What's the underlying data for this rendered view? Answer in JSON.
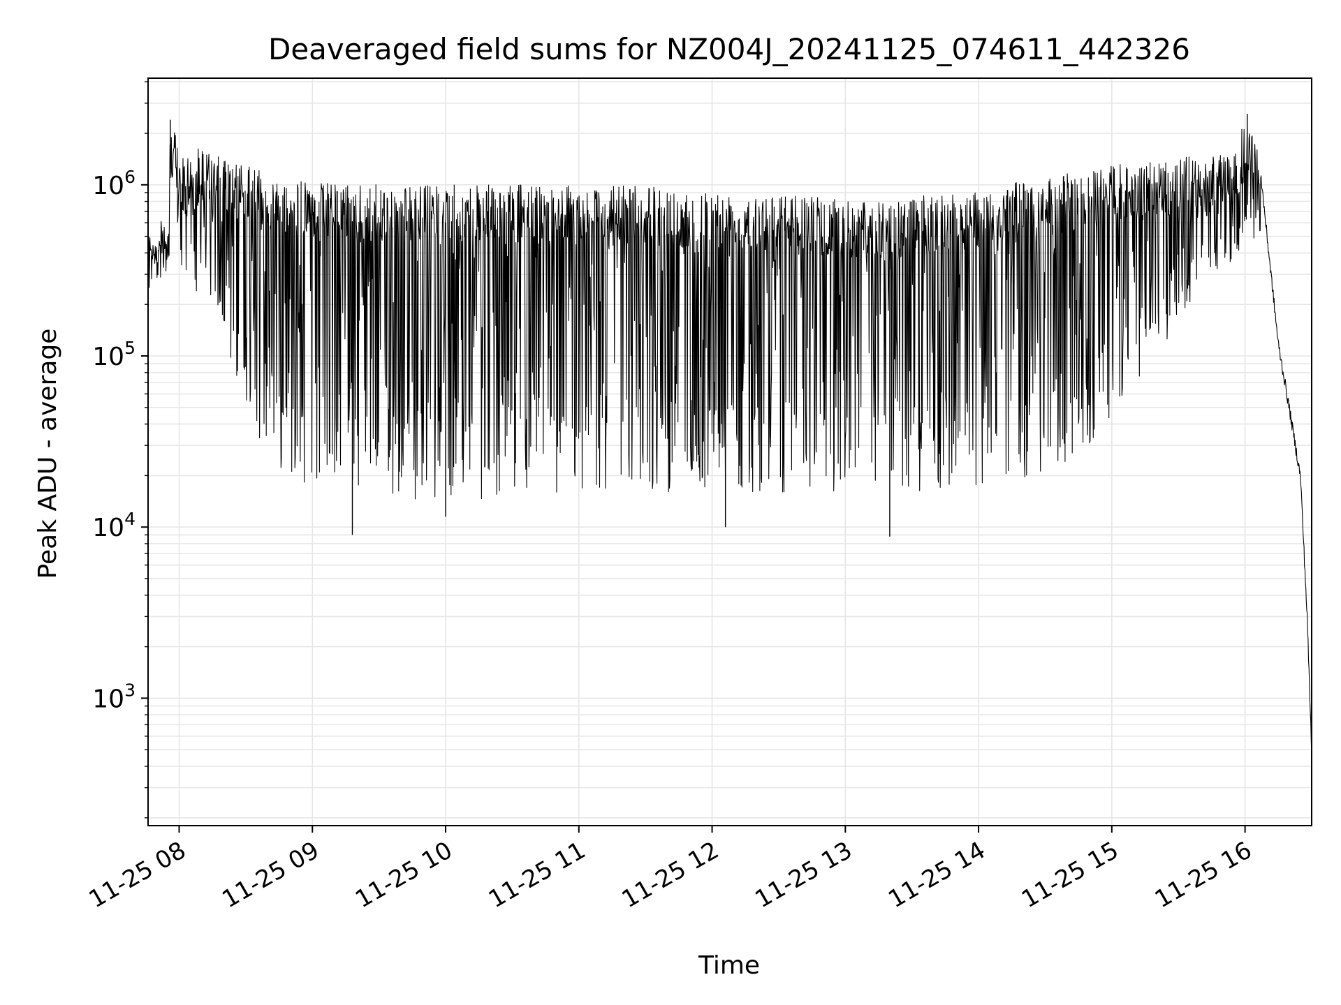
{
  "chart_data": {
    "type": "line",
    "title": "Deaveraged field sums for NZ004J_20241125_074611_442326",
    "xlabel": "Time",
    "ylabel": "Peak ADU - average",
    "yscale": "log",
    "ylim": [
      180,
      4200000
    ],
    "xlim": [
      "2024-11-25 07:46",
      "2024-11-25 16:30"
    ],
    "grid": true,
    "legend": "none",
    "line_color": "#000000",
    "grid_color": "#e6e6e6",
    "x_ticks": [
      {
        "value": "2024-11-25 08:00",
        "label": "11-25 08"
      },
      {
        "value": "2024-11-25 09:00",
        "label": "11-25 09"
      },
      {
        "value": "2024-11-25 10:00",
        "label": "11-25 10"
      },
      {
        "value": "2024-11-25 11:00",
        "label": "11-25 11"
      },
      {
        "value": "2024-11-25 12:00",
        "label": "11-25 12"
      },
      {
        "value": "2024-11-25 13:00",
        "label": "11-25 13"
      },
      {
        "value": "2024-11-25 14:00",
        "label": "11-25 14"
      },
      {
        "value": "2024-11-25 15:00",
        "label": "11-25 15"
      },
      {
        "value": "2024-11-25 16:00",
        "label": "11-25 16"
      }
    ],
    "y_ticks": [
      {
        "value": 1000,
        "base": "10",
        "exp": "3"
      },
      {
        "value": 10000,
        "base": "10",
        "exp": "4"
      },
      {
        "value": 100000,
        "base": "10",
        "exp": "5"
      },
      {
        "value": 1000000,
        "base": "10",
        "exp": "6"
      }
    ],
    "series": [
      {
        "upper_envelope": {
          "x": [
            "2024-11-25 07:46",
            "2024-11-25 07:55",
            "2024-11-25 07:56",
            "2024-11-25 08:02",
            "2024-11-25 08:10",
            "2024-11-25 08:15",
            "2024-11-25 08:30",
            "2024-11-25 08:45",
            "2024-11-25 09:00",
            "2024-11-25 09:30",
            "2024-11-25 10:00",
            "2024-11-25 10:30",
            "2024-11-25 11:00",
            "2024-11-25 11:30",
            "2024-11-25 12:00",
            "2024-11-25 12:30",
            "2024-11-25 13:00",
            "2024-11-25 13:20",
            "2024-11-25 13:30",
            "2024-11-25 14:00",
            "2024-11-25 14:30",
            "2024-11-25 15:00",
            "2024-11-25 15:30",
            "2024-11-25 15:55",
            "2024-11-25 16:00",
            "2024-11-25 16:05",
            "2024-11-25 16:07",
            "2024-11-25 16:10",
            "2024-11-25 16:15",
            "2024-11-25 16:20",
            "2024-11-25 16:25",
            "2024-11-25 16:28",
            "2024-11-25 16:30"
          ],
          "y": [
            500000,
            700000,
            2400000,
            1400000,
            1700000,
            1500000,
            1300000,
            1100000,
            1050000,
            1000000,
            1000000,
            1000000,
            1000000,
            980000,
            950000,
            900000,
            820000,
            800000,
            850000,
            950000,
            1100000,
            1300000,
            1450000,
            1500000,
            2500000,
            1800000,
            1200000,
            500000,
            120000,
            50000,
            20000,
            3000,
            500
          ]
        },
        "lower_envelope": {
          "x": [
            "2024-11-25 07:46",
            "2024-11-25 08:00",
            "2024-11-25 08:10",
            "2024-11-25 08:20",
            "2024-11-25 08:30",
            "2024-11-25 08:40",
            "2024-11-25 08:50",
            "2024-11-25 09:00",
            "2024-11-25 09:30",
            "2024-11-25 10:00",
            "2024-11-25 10:30",
            "2024-11-25 11:00",
            "2024-11-25 11:30",
            "2024-11-25 12:00",
            "2024-11-25 12:30",
            "2024-11-25 13:00",
            "2024-11-25 13:30",
            "2024-11-25 14:00",
            "2024-11-25 14:30",
            "2024-11-25 14:45",
            "2024-11-25 15:00",
            "2024-11-25 15:20",
            "2024-11-25 15:40",
            "2024-11-25 15:55",
            "2024-11-25 16:05"
          ],
          "y": [
            350000,
            300000,
            220000,
            120000,
            50000,
            25000,
            20000,
            17000,
            15000,
            14000,
            15000,
            15000,
            16000,
            16000,
            16000,
            15000,
            15000,
            17000,
            20000,
            25000,
            40000,
            100000,
            250000,
            350000,
            500000
          ]
        },
        "notable_points": {
          "x": [
            "2024-11-25 07:56",
            "2024-11-25 09:18",
            "2024-11-25 10:00",
            "2024-11-25 12:06",
            "2024-11-25 13:20",
            "2024-11-25 16:01"
          ],
          "y": [
            2400000,
            9000,
            11500,
            10000,
            8800,
            2600000
          ]
        }
      }
    ]
  }
}
